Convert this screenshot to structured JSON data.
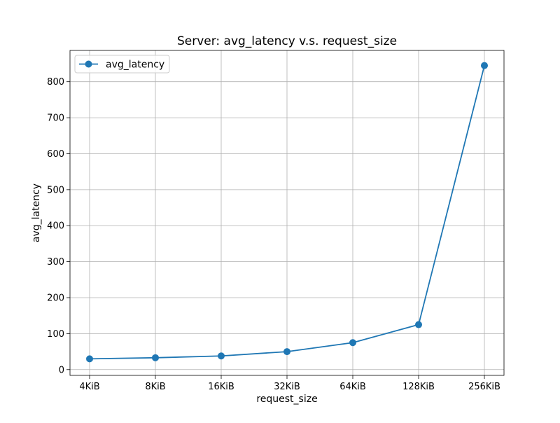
{
  "chart_data": {
    "type": "line",
    "title": "Server: avg_latency v.s. request_size",
    "xlabel": "request_size",
    "ylabel": "avg_latency",
    "categories": [
      "4KiB",
      "8KiB",
      "16KiB",
      "32KiB",
      "64KiB",
      "128KiB",
      "256KiB"
    ],
    "series": [
      {
        "name": "avg_latency",
        "values": [
          30,
          33,
          38,
          50,
          75,
          125,
          845
        ],
        "color": "#1f77b4",
        "marker": "circle"
      }
    ],
    "ylim": [
      -16,
      887
    ],
    "yticks": [
      0,
      100,
      200,
      300,
      400,
      500,
      600,
      700,
      800
    ],
    "grid": true,
    "legend": "upper-left"
  }
}
